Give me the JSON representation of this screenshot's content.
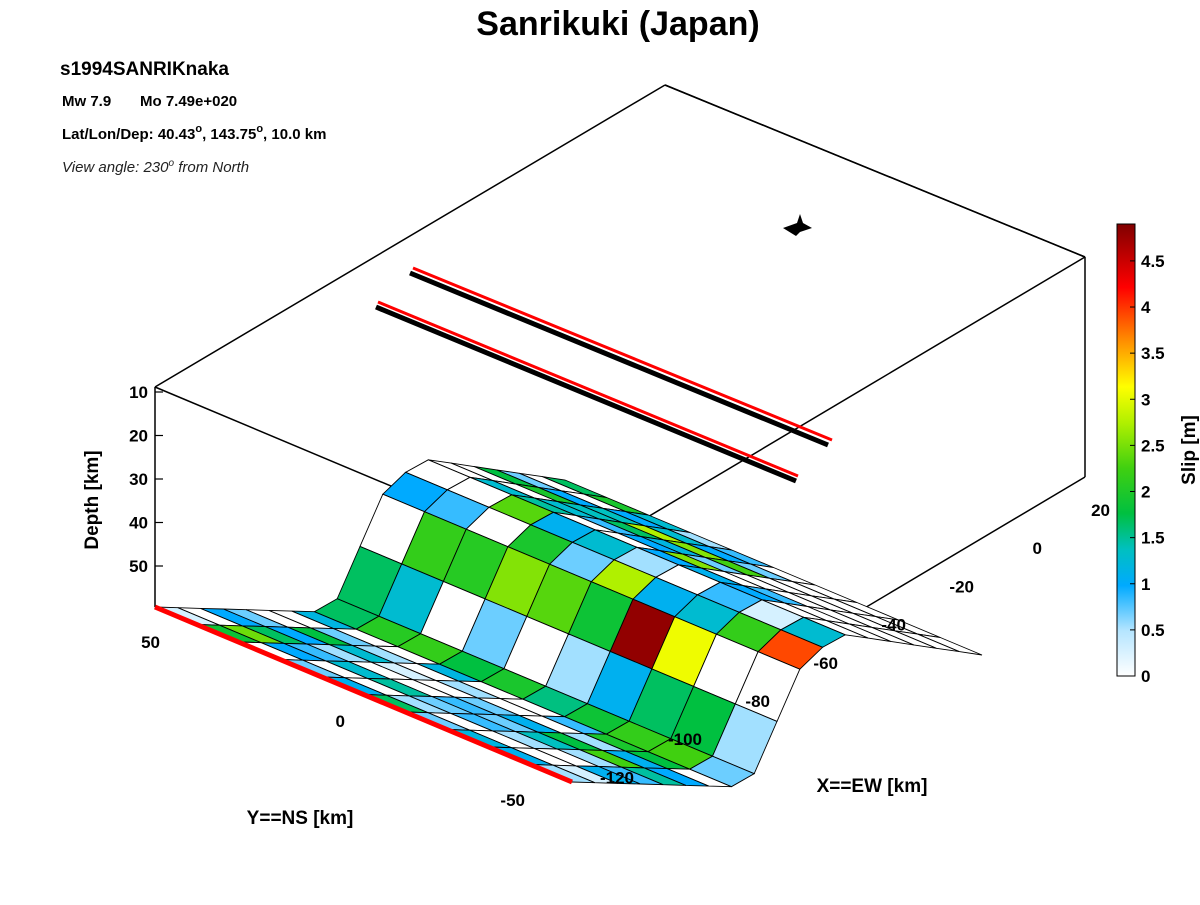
{
  "figure": {
    "title": "Sanrikuki (Japan)",
    "event_id": "s1994SANRIKnaka",
    "magnitude": "Mw 7.9",
    "moment": "Mo 7.49e+020",
    "location_label": "Lat/Lon/Dep: 40.43",
    "location_mid": ", 143.75",
    "location_tail": ", 10.0 km",
    "degree_mark": "o",
    "view_label": "View angle: 230",
    "view_tail": " from North"
  },
  "chart_data": {
    "type": "heatmap",
    "title": "Sanrikuki (Japan)",
    "xlabel": "X==EW [km]",
    "ylabel": "Y==NS [km]",
    "zlabel": "Depth [km]",
    "colorbar_label": "Slip [m]",
    "x_ticks": [
      20,
      0,
      -20,
      -40,
      -60,
      -80,
      -100,
      -120
    ],
    "y_ticks": [
      50,
      0,
      -50
    ],
    "z_ticks": [
      10,
      20,
      30,
      40,
      50
    ],
    "colorbar_ticks": [
      0,
      0.5,
      1,
      1.5,
      2,
      2.5,
      3,
      3.5,
      4,
      4.5
    ],
    "colorbar_range": [
      0,
      4.9
    ],
    "colormap": [
      "#ffffff",
      "#00aaff",
      "#00c040",
      "#80e000",
      "#ffff00",
      "#ff8000",
      "#ff0000",
      "#800000"
    ],
    "grid": "on",
    "slip_m": [
      [
        0.1,
        1.4,
        0.0,
        0.3,
        0.6,
        1.2,
        0.3,
        0.7,
        0.6,
        0.2
      ],
      [
        0.0,
        2.0,
        0.5,
        0.0,
        0.0,
        0.2,
        0.0,
        0.0,
        0.0,
        0.1
      ],
      [
        0.5,
        1.2,
        0.4,
        0.8,
        1.0,
        0.3,
        0.4,
        0.2,
        0.0,
        0.6
      ],
      [
        0.3,
        0.5,
        0.2,
        0.0,
        0.0,
        0.4,
        0.3,
        0.9,
        0.2,
        0.4
      ],
      [
        0.0,
        1.3,
        0.8,
        0.1,
        0.0,
        0.3,
        0.6,
        1.3,
        1.8,
        1.0
      ],
      [
        0.0,
        0.3,
        0.2,
        0.0,
        0.2,
        0.0,
        0.0,
        0.2,
        0.6,
        0.5
      ],
      [
        0.7,
        0.0,
        0.0,
        0.7,
        0.0,
        0.0,
        0.4,
        1.5,
        1.3,
        0.0
      ],
      [
        1.2,
        1.6,
        1.7,
        1.3,
        1.5,
        1.1,
        1.4,
        1.7,
        1.8,
        0.3
      ],
      [
        1.2,
        0.8,
        0.0,
        0.3,
        0.0,
        0.2,
        0.6,
        1.2,
        1.3,
        0.2
      ],
      [
        0.0,
        1.7,
        1.6,
        2.1,
        1.9,
        1.4,
        4.8,
        2.7,
        0.0,
        0.0
      ],
      [
        0.5,
        0.4,
        0.0,
        1.5,
        0.3,
        2.3,
        0.6,
        0.8,
        1.7,
        3.9
      ],
      [
        0.0,
        0.0,
        1.9,
        0.6,
        0.8,
        0.2,
        0.0,
        0.4,
        0.1,
        0.8
      ],
      [
        0.0,
        0.8,
        1.0,
        0.0,
        0.0,
        0.5,
        0.6,
        0.5,
        0.0,
        0.0
      ],
      [
        0.0,
        0.0,
        0.8,
        0.4,
        0.5,
        2.1,
        0.0,
        0.4,
        0.0,
        0.0
      ],
      [
        1.3,
        1.5,
        0.9,
        1.2,
        0.7,
        0.3,
        0.0,
        0.0,
        0.0,
        0.0
      ],
      [
        0.3,
        0.5,
        0.9,
        2.3,
        2.1,
        1.8,
        0.0,
        0.0,
        0.0,
        0.0
      ],
      [
        0.0,
        0.0,
        0.5,
        0.8,
        0.5,
        0.3,
        0.0,
        0.0,
        0.0,
        0.0
      ],
      [
        1.2,
        1.5,
        0.8,
        0.2,
        0.4,
        0.0,
        0.0,
        0.0,
        0.0,
        0.0
      ]
    ]
  }
}
